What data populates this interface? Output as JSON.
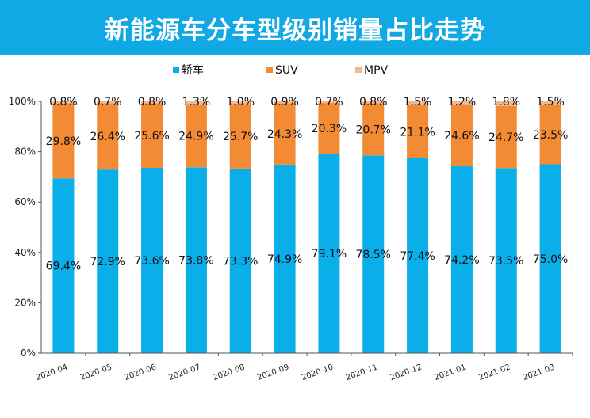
{
  "title": "新能源车分车型级别销量占比走势",
  "colors": {
    "banner": "#10a9e6",
    "axis": "#555555"
  },
  "chart_data": {
    "type": "bar",
    "stacked": true,
    "title": "新能源车分车型级别销量占比走势",
    "categories": [
      "2020-04",
      "2020-05",
      "2020-06",
      "2020-07",
      "2020-08",
      "2020-09",
      "2020-10",
      "2020-11",
      "2020-12",
      "2021-01",
      "2021-02",
      "2021-03"
    ],
    "series": [
      {
        "name": "轿车",
        "color": "#0aaee8",
        "values": [
          69.4,
          72.9,
          73.6,
          73.8,
          73.3,
          74.9,
          79.1,
          78.5,
          77.4,
          74.2,
          73.5,
          75.0
        ],
        "labels": [
          "69.4%",
          "72.9%",
          "73.6%",
          "73.8%",
          "73.3%",
          "74.9%",
          "79.1%",
          "78.5%",
          "77.4%",
          "74.2%",
          "73.5%",
          "75.0%"
        ]
      },
      {
        "name": "SUV",
        "color": "#f38a34",
        "values": [
          29.8,
          26.4,
          25.6,
          24.9,
          25.7,
          24.3,
          20.3,
          20.7,
          21.1,
          24.6,
          24.7,
          23.5
        ],
        "labels": [
          "29.8%",
          "26.4%",
          "25.6%",
          "24.9%",
          "25.7%",
          "24.3%",
          "20.3%",
          "20.7%",
          "21.1%",
          "24.6%",
          "24.7%",
          "23.5%"
        ]
      },
      {
        "name": "MPV",
        "color": "#f3b98c",
        "values": [
          0.8,
          0.7,
          0.8,
          1.3,
          1.0,
          0.9,
          0.7,
          0.8,
          1.5,
          1.2,
          1.8,
          1.5
        ],
        "labels": [
          "0.8%",
          "0.7%",
          "0.8%",
          "1.3%",
          "1.0%",
          "0.9%",
          "0.7%",
          "0.8%",
          "1.5%",
          "1.2%",
          "1.8%",
          "1.5%"
        ]
      }
    ],
    "yticks": [
      "0%",
      "20%",
      "40%",
      "60%",
      "80%",
      "100%"
    ],
    "ylim": [
      0,
      100
    ],
    "xlabel": "",
    "ylabel": "",
    "grid": false,
    "legend": "top"
  }
}
